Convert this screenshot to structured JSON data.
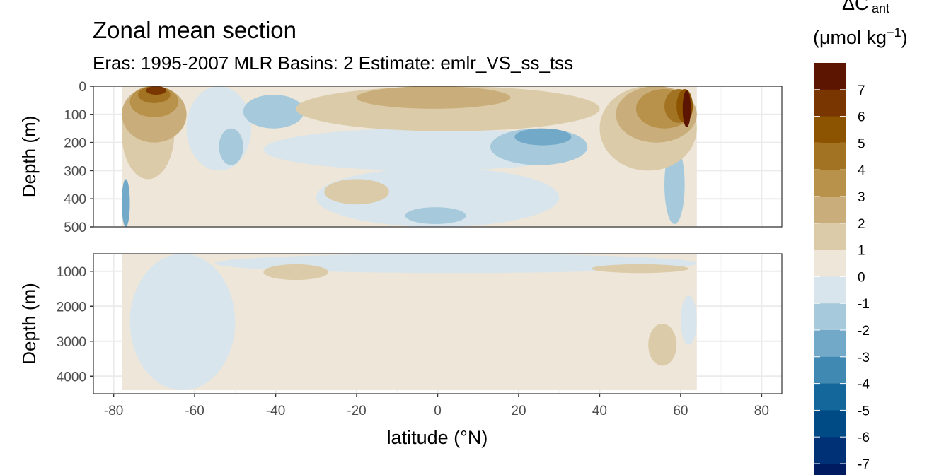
{
  "chart_data": {
    "type": "heatmap",
    "title": "Zonal mean section",
    "subtitle": "Eras: 1995-2007 MLR Basins: 2 Estimate: emlr_VS_ss_tss",
    "xlabel": "latitude (°N)",
    "x_ticks": [
      -80,
      -60,
      -40,
      -20,
      0,
      20,
      40,
      60,
      80
    ],
    "xlim": [
      -85,
      85
    ],
    "panels": [
      {
        "name": "upper",
        "ylabel": "Depth (m)",
        "ylim": [
          0,
          500
        ],
        "y_reversed": true,
        "y_ticks": [
          0,
          100,
          200,
          300,
          400,
          500
        ]
      },
      {
        "name": "lower",
        "ylabel": "Depth (m)",
        "ylim": [
          500,
          4500
        ],
        "y_reversed": true,
        "y_ticks": [
          1000,
          2000,
          3000,
          4000
        ]
      }
    ],
    "legend": {
      "title_main": "ΔC",
      "title_sub": "ant",
      "units_prefix": "(μmol kg",
      "units_sup": "−1",
      "units_suffix": ")",
      "position": "right",
      "labels": [
        "7",
        "6",
        "5",
        "4",
        "3",
        "2",
        "1",
        "0",
        "-1",
        "-2",
        "-3",
        "-4",
        "-5",
        "-6",
        "-7"
      ],
      "bins": [
        {
          "range": [
            7,
            8
          ],
          "color": "#5b1500"
        },
        {
          "range": [
            6,
            7
          ],
          "color": "#7a3600"
        },
        {
          "range": [
            5,
            6
          ],
          "color": "#8c5400"
        },
        {
          "range": [
            4,
            5
          ],
          "color": "#a27322"
        },
        {
          "range": [
            3,
            4
          ],
          "color": "#b8914a"
        },
        {
          "range": [
            2,
            3
          ],
          "color": "#c9ae7c"
        },
        {
          "range": [
            1,
            2
          ],
          "color": "#dccba8"
        },
        {
          "range": [
            0,
            1
          ],
          "color": "#ede6d9"
        },
        {
          "range": [
            -1,
            0
          ],
          "color": "#d8e5ec"
        },
        {
          "range": [
            -2,
            -1
          ],
          "color": "#a6cadb"
        },
        {
          "range": [
            -3,
            -2
          ],
          "color": "#73a9c8"
        },
        {
          "range": [
            -4,
            -3
          ],
          "color": "#3f89b3"
        },
        {
          "range": [
            -5,
            -4
          ],
          "color": "#14679a"
        },
        {
          "range": [
            -6,
            -5
          ],
          "color": "#004a85"
        },
        {
          "range": [
            -7,
            -6
          ],
          "color": "#003177"
        },
        {
          "range": [
            -8,
            -7
          ],
          "color": "#001b60"
        }
      ]
    },
    "features": [
      {
        "panel": "upper",
        "value": 0.5,
        "lat": [
          -78,
          64
        ],
        "depth": [
          0,
          500
        ],
        "shape": "rect"
      },
      {
        "panel": "upper",
        "value": 1.5,
        "lat": [
          -78,
          -65
        ],
        "depth": [
          0,
          330
        ],
        "shape": "ellipse"
      },
      {
        "panel": "upper",
        "value": 2.5,
        "lat": [
          -78,
          -62
        ],
        "depth": [
          0,
          200
        ],
        "shape": "ellipse"
      },
      {
        "panel": "upper",
        "value": 3.5,
        "lat": [
          -76,
          -64
        ],
        "depth": [
          0,
          110
        ],
        "shape": "ellipse"
      },
      {
        "panel": "upper",
        "value": 4.5,
        "lat": [
          -74,
          -66
        ],
        "depth": [
          0,
          60
        ],
        "shape": "ellipse"
      },
      {
        "panel": "upper",
        "value": 6.5,
        "lat": [
          -72,
          -67
        ],
        "depth": [
          0,
          30
        ],
        "shape": "ellipse"
      },
      {
        "panel": "upper",
        "value": -0.5,
        "lat": [
          -62,
          -46
        ],
        "depth": [
          0,
          300
        ],
        "shape": "ellipse"
      },
      {
        "panel": "upper",
        "value": -0.5,
        "lat": [
          -43,
          37
        ],
        "depth": [
          150,
          300
        ],
        "shape": "ellipse"
      },
      {
        "panel": "upper",
        "value": -0.5,
        "lat": [
          -30,
          30
        ],
        "depth": [
          290,
          500
        ],
        "shape": "ellipse"
      },
      {
        "panel": "upper",
        "value": -1.5,
        "lat": [
          -48,
          -33
        ],
        "depth": [
          30,
          150
        ],
        "shape": "ellipse"
      },
      {
        "panel": "upper",
        "value": -1.5,
        "lat": [
          -54,
          -48
        ],
        "depth": [
          150,
          280
        ],
        "shape": "ellipse"
      },
      {
        "panel": "upper",
        "value": -1.5,
        "lat": [
          13,
          37
        ],
        "depth": [
          150,
          280
        ],
        "shape": "ellipse"
      },
      {
        "panel": "upper",
        "value": -2.5,
        "lat": [
          19,
          33
        ],
        "depth": [
          150,
          210
        ],
        "shape": "ellipse"
      },
      {
        "panel": "upper",
        "value": -1.5,
        "lat": [
          -8,
          7
        ],
        "depth": [
          430,
          490
        ],
        "shape": "ellipse"
      },
      {
        "panel": "upper",
        "value": -1.5,
        "lat": [
          56,
          61
        ],
        "depth": [
          210,
          490
        ],
        "shape": "ellipse"
      },
      {
        "panel": "upper",
        "value": -2.5,
        "lat": [
          -78,
          -76
        ],
        "depth": [
          330,
          500
        ],
        "shape": "ellipse"
      },
      {
        "panel": "upper",
        "value": 1.5,
        "lat": [
          -35,
          40
        ],
        "depth": [
          0,
          160
        ],
        "shape": "ellipse"
      },
      {
        "panel": "upper",
        "value": 2.5,
        "lat": [
          -20,
          18
        ],
        "depth": [
          0,
          80
        ],
        "shape": "ellipse"
      },
      {
        "panel": "upper",
        "value": 1.5,
        "lat": [
          -28,
          -12
        ],
        "depth": [
          330,
          420
        ],
        "shape": "ellipse"
      },
      {
        "panel": "upper",
        "value": 1.5,
        "lat": [
          40,
          64
        ],
        "depth": [
          0,
          300
        ],
        "shape": "ellipse"
      },
      {
        "panel": "upper",
        "value": 2.5,
        "lat": [
          44,
          64
        ],
        "depth": [
          0,
          200
        ],
        "shape": "ellipse"
      },
      {
        "panel": "upper",
        "value": 3.5,
        "lat": [
          49,
          63
        ],
        "depth": [
          10,
          150
        ],
        "shape": "ellipse"
      },
      {
        "panel": "upper",
        "value": 4.5,
        "lat": [
          56,
          63
        ],
        "depth": [
          10,
          130
        ],
        "shape": "ellipse"
      },
      {
        "panel": "upper",
        "value": 5.5,
        "lat": [
          59,
          63
        ],
        "depth": [
          10,
          130
        ],
        "shape": "ellipse"
      },
      {
        "panel": "upper",
        "value": 7.5,
        "lat": [
          60.5,
          62.5
        ],
        "depth": [
          15,
          145
        ],
        "shape": "ellipse"
      },
      {
        "panel": "lower",
        "value": 0.5,
        "lat": [
          -78,
          64
        ],
        "depth": [
          500,
          4400
        ],
        "shape": "rect"
      },
      {
        "panel": "lower",
        "value": -0.5,
        "lat": [
          -76,
          -50
        ],
        "depth": [
          500,
          4400
        ],
        "shape": "ellipse"
      },
      {
        "panel": "lower",
        "value": -0.5,
        "lat": [
          -55,
          64
        ],
        "depth": [
          500,
          1050
        ],
        "shape": "ellipse"
      },
      {
        "panel": "lower",
        "value": 1.5,
        "lat": [
          -43,
          -27
        ],
        "depth": [
          800,
          1250
        ],
        "shape": "ellipse"
      },
      {
        "panel": "lower",
        "value": 1.5,
        "lat": [
          38,
          62
        ],
        "depth": [
          800,
          1050
        ],
        "shape": "ellipse"
      },
      {
        "panel": "lower",
        "value": 1.5,
        "lat": [
          52,
          59
        ],
        "depth": [
          2500,
          3700
        ],
        "shape": "ellipse"
      },
      {
        "panel": "lower",
        "value": -0.5,
        "lat": [
          60,
          64
        ],
        "depth": [
          1700,
          3100
        ],
        "shape": "ellipse"
      }
    ]
  }
}
